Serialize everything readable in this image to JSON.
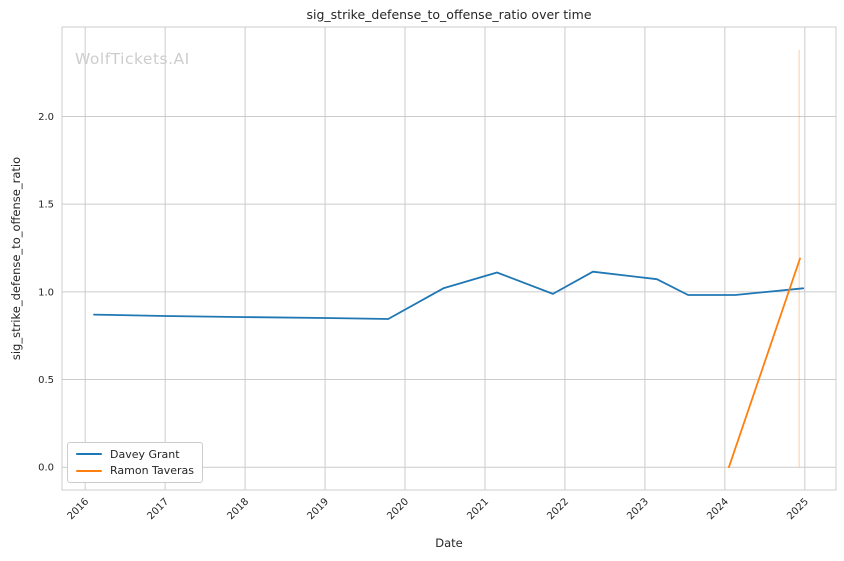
{
  "watermark": {
    "text": "WolfTickets.AI",
    "color": "#cdcdcd"
  },
  "style": {
    "background": "#ffffff",
    "grid_color": "#cccccc",
    "spine_color": "#cccccc",
    "text_color": "#262626"
  },
  "chart_data": {
    "type": "line",
    "title": "sig_strike_defense_to_offense_ratio over time",
    "xlabel": "Date",
    "ylabel": "sig_strike_defense_to_offense_ratio",
    "grid": true,
    "legend_position": "lower left",
    "xlim": [
      2015.71,
      2025.39
    ],
    "ylim": [
      -0.13,
      2.51
    ],
    "x_ticks": [
      2016,
      2017,
      2018,
      2019,
      2020,
      2021,
      2022,
      2023,
      2024,
      2025
    ],
    "y_ticks": [
      0.0,
      0.5,
      1.0,
      1.5,
      2.0
    ],
    "series": [
      {
        "name": "Davey Grant",
        "color": "#1f77b4",
        "x": [
          2016.11,
          2017.0,
          2018.0,
          2019.0,
          2019.79,
          2020.48,
          2021.15,
          2021.85,
          2022.35,
          2023.15,
          2023.54,
          2024.13,
          2024.98
        ],
        "y": [
          0.87,
          0.862,
          0.856,
          0.851,
          0.845,
          1.02,
          1.11,
          0.988,
          1.115,
          1.072,
          0.982,
          0.982,
          1.02
        ]
      },
      {
        "name": "Ramon Taveras",
        "color": "#ff7f0e",
        "x": [
          2024.05,
          2024.94
        ],
        "y": [
          0.0,
          1.19
        ]
      }
    ],
    "event_marker_line": {
      "x": 2024.93,
      "y_from": 0.0,
      "y_to": 2.38,
      "color": "#ff7f0e",
      "opacity": 0.25
    }
  }
}
